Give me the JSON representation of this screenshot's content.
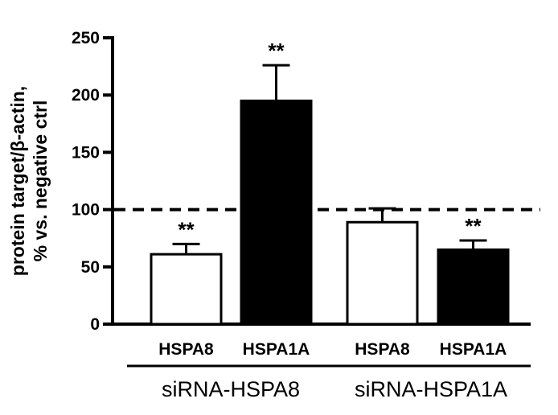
{
  "chart_data": {
    "type": "bar",
    "ylabel_lines": [
      "protein target/β-actin,",
      "% vs. negative ctrl"
    ],
    "ylim": [
      0,
      250
    ],
    "yticks": [
      "0",
      "50",
      "100",
      "150",
      "200",
      "250"
    ],
    "reference_line": 100,
    "bars": [
      {
        "category": "HSPA8",
        "group": "siRNA-HSPA8",
        "value": 61,
        "error": 9,
        "fill": "#ffffff",
        "significance": "**"
      },
      {
        "category": "HSPA1A",
        "group": "siRNA-HSPA8",
        "value": 195,
        "error": 31,
        "fill": "#000000",
        "significance": "**"
      },
      {
        "category": "HSPA8",
        "group": "siRNA-HSPA1A",
        "value": 89,
        "error": 12,
        "fill": "#ffffff",
        "significance": ""
      },
      {
        "category": "HSPA1A",
        "group": "siRNA-HSPA1A",
        "value": 65,
        "error": 8,
        "fill": "#000000",
        "significance": "**"
      }
    ],
    "groups": [
      "siRNA-HSPA8",
      "siRNA-HSPA1A"
    ]
  }
}
